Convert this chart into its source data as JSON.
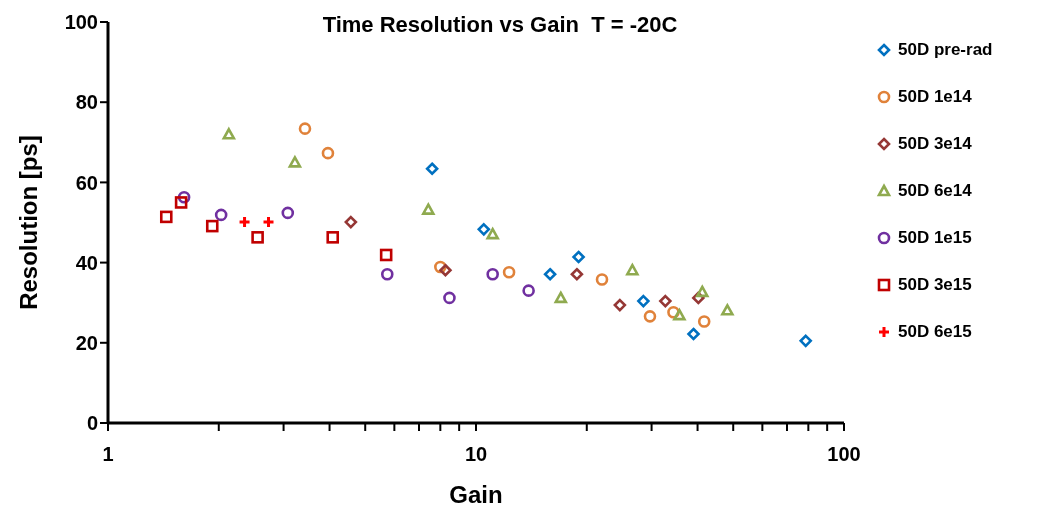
{
  "chart_data": {
    "type": "scatter",
    "title": "Time Resolution vs Gain  T = -20C",
    "xlabel": "Gain",
    "ylabel": "Resolution [ps]",
    "log": "x",
    "grid": false,
    "legend": "right",
    "xlim": [
      1,
      100
    ],
    "xticks": [
      1,
      {
        "value": 2,
        "label": null
      },
      {
        "value": 3,
        "label": null
      },
      {
        "value": 4,
        "label": null
      },
      {
        "value": 5,
        "label": null
      },
      {
        "value": 6,
        "label": null
      },
      {
        "value": 7,
        "label": null
      },
      {
        "value": 8,
        "label": null
      },
      {
        "value": 9,
        "label": null
      },
      10,
      {
        "value": 20,
        "label": null
      },
      {
        "value": 30,
        "label": null
      },
      {
        "value": 40,
        "label": null
      },
      {
        "value": 50,
        "label": null
      },
      {
        "value": 60,
        "label": null
      },
      {
        "value": 70,
        "label": null
      },
      {
        "value": 80,
        "label": null
      },
      {
        "value": 90,
        "label": null
      },
      100
    ],
    "ylim": [
      0,
      100
    ],
    "yticks": [
      0,
      20,
      40,
      60,
      80,
      100
    ],
    "series": [
      {
        "name": "50D pre-rad",
        "color": "#0070c0",
        "marker": "diamond",
        "x": [
          7.6,
          10.5,
          15.9,
          19.0,
          28.5,
          39,
          78.7
        ],
        "values": [
          63.4,
          48.3,
          37.1,
          41.4,
          30.4,
          22.2,
          20.5
        ]
      },
      {
        "name": "50D 1e14",
        "color": "#e0823a",
        "marker": "circle",
        "x": [
          3.43,
          3.96,
          8.0,
          12.3,
          22.0,
          29.7,
          34.4,
          41.7
        ],
        "values": [
          73.4,
          67.3,
          38.9,
          37.6,
          35.8,
          26.6,
          27.6,
          25.3
        ]
      },
      {
        "name": "50D 3e14",
        "color": "#953735",
        "marker": "diamond",
        "x": [
          4.57,
          8.26,
          18.8,
          24.6,
          32.7,
          40.2
        ],
        "values": [
          50.1,
          38.1,
          37.1,
          29.4,
          30.4,
          31.2
        ]
      },
      {
        "name": "50D 6e14",
        "color": "#8faa4f",
        "marker": "triangle",
        "x": [
          2.13,
          3.22,
          7.42,
          11.1,
          17.0,
          26.6,
          35.7,
          41.2,
          48.2
        ],
        "values": [
          72,
          65,
          53.2,
          47.1,
          31.2,
          38.1,
          26.9,
          32.7,
          28.1
        ]
      },
      {
        "name": "50D 1e15",
        "color": "#7030a0",
        "marker": "circle",
        "x": [
          1.61,
          2.03,
          3.08,
          5.74,
          8.47,
          11.1,
          13.9
        ],
        "values": [
          56.3,
          51.9,
          52.4,
          37.1,
          31.2,
          37.1,
          33
        ]
      },
      {
        "name": "50D 3e15",
        "color": "#c00000",
        "marker": "square",
        "x": [
          1.44,
          1.58,
          1.92,
          2.55,
          4.08,
          5.7
        ],
        "values": [
          51.4,
          55,
          49.1,
          46.3,
          46.3,
          41.9
        ]
      },
      {
        "name": "50D 6e15",
        "color": "#ff0000",
        "marker": "cross",
        "x": [
          2.35,
          2.73
        ],
        "values": [
          50.1,
          50.1
        ]
      }
    ]
  }
}
